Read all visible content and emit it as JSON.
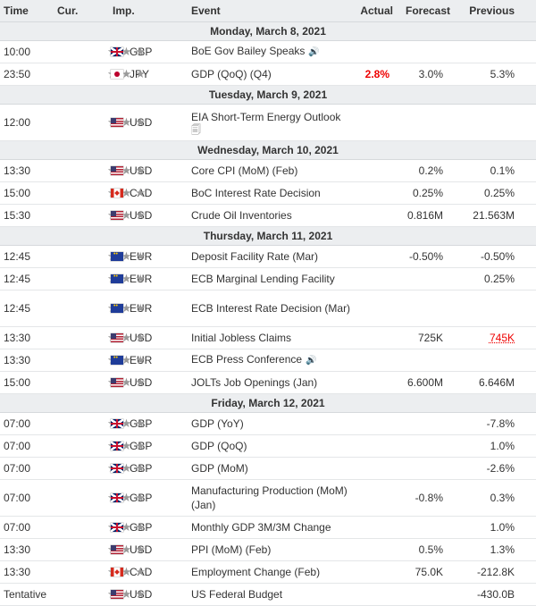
{
  "headers": {
    "time": "Time",
    "cur": "Cur.",
    "imp": "Imp.",
    "event": "Event",
    "actual": "Actual",
    "forecast": "Forecast",
    "previous": "Previous"
  },
  "importance_stars": "★★★",
  "speaker_glyph": "🔊",
  "doc_glyph": "🗐",
  "days": [
    {
      "label": "Monday, March 8, 2021",
      "events": [
        {
          "time": "10:00",
          "cur": "GBP",
          "flag": "gbp",
          "event": "BoE Gov Bailey Speaks",
          "speaker": true,
          "actual": "",
          "forecast": "",
          "previous": ""
        },
        {
          "time": "23:50",
          "cur": "JPY",
          "flag": "jpy",
          "event": "GDP (QoQ) (Q4)",
          "actual": "2.8%",
          "forecast": "3.0%",
          "previous": "5.3%"
        }
      ]
    },
    {
      "label": "Tuesday, March 9, 2021",
      "events": [
        {
          "time": "12:00",
          "cur": "USD",
          "flag": "usd",
          "event": "EIA Short-Term Energy Outlook",
          "doc": true,
          "tall": true,
          "actual": "",
          "forecast": "",
          "previous": ""
        }
      ]
    },
    {
      "label": "Wednesday, March 10, 2021",
      "events": [
        {
          "time": "13:30",
          "cur": "USD",
          "flag": "usd",
          "event": "Core CPI (MoM) (Feb)",
          "actual": "",
          "forecast": "0.2%",
          "previous": "0.1%"
        },
        {
          "time": "15:00",
          "cur": "CAD",
          "flag": "cad",
          "event": "BoC Interest Rate Decision",
          "actual": "",
          "forecast": "0.25%",
          "previous": "0.25%"
        },
        {
          "time": "15:30",
          "cur": "USD",
          "flag": "usd",
          "event": "Crude Oil Inventories",
          "actual": "",
          "forecast": "0.816M",
          "previous": "21.563M"
        }
      ]
    },
    {
      "label": "Thursday, March 11, 2021",
      "events": [
        {
          "time": "12:45",
          "cur": "EUR",
          "flag": "eur",
          "event": "Deposit Facility Rate (Mar)",
          "actual": "",
          "forecast": "-0.50%",
          "previous": "-0.50%"
        },
        {
          "time": "12:45",
          "cur": "EUR",
          "flag": "eur",
          "event": "ECB Marginal Lending Facility",
          "actual": "",
          "forecast": "",
          "previous": "0.25%"
        },
        {
          "time": "12:45",
          "cur": "EUR",
          "flag": "eur",
          "event": "ECB Interest Rate Decision (Mar)",
          "tall": true,
          "actual": "",
          "forecast": "",
          "previous": ""
        },
        {
          "time": "13:30",
          "cur": "USD",
          "flag": "usd",
          "event": "Initial Jobless Claims",
          "actual": "",
          "forecast": "725K",
          "previous": "745K",
          "prev_red": true
        },
        {
          "time": "13:30",
          "cur": "EUR",
          "flag": "eur",
          "event": "ECB Press Conference",
          "speaker": true,
          "actual": "",
          "forecast": "",
          "previous": ""
        },
        {
          "time": "15:00",
          "cur": "USD",
          "flag": "usd",
          "event": "JOLTs Job Openings (Jan)",
          "actual": "",
          "forecast": "6.600M",
          "previous": "6.646M"
        }
      ]
    },
    {
      "label": "Friday, March 12, 2021",
      "events": [
        {
          "time": "07:00",
          "cur": "GBP",
          "flag": "gbp",
          "event": "GDP (YoY)",
          "actual": "",
          "forecast": "",
          "previous": "-7.8%"
        },
        {
          "time": "07:00",
          "cur": "GBP",
          "flag": "gbp",
          "event": "GDP (QoQ)",
          "actual": "",
          "forecast": "",
          "previous": "1.0%"
        },
        {
          "time": "07:00",
          "cur": "GBP",
          "flag": "gbp",
          "event": "GDP (MoM)",
          "actual": "",
          "forecast": "",
          "previous": "-2.6%"
        },
        {
          "time": "07:00",
          "cur": "GBP",
          "flag": "gbp",
          "event": "Manufacturing Production (MoM) (Jan)",
          "tall": true,
          "actual": "",
          "forecast": "-0.8%",
          "previous": "0.3%"
        },
        {
          "time": "07:00",
          "cur": "GBP",
          "flag": "gbp",
          "event": "Monthly GDP 3M/3M Change",
          "actual": "",
          "forecast": "",
          "previous": "1.0%"
        },
        {
          "time": "13:30",
          "cur": "USD",
          "flag": "usd",
          "event": "PPI (MoM) (Feb)",
          "actual": "",
          "forecast": "0.5%",
          "previous": "1.3%"
        },
        {
          "time": "13:30",
          "cur": "CAD",
          "flag": "cad",
          "event": "Employment Change (Feb)",
          "actual": "",
          "forecast": "75.0K",
          "previous": "-212.8K"
        },
        {
          "time": "Tentative",
          "cur": "USD",
          "flag": "usd",
          "event": "US Federal Budget",
          "actual": "",
          "forecast": "",
          "previous": "-430.0B"
        }
      ]
    }
  ]
}
